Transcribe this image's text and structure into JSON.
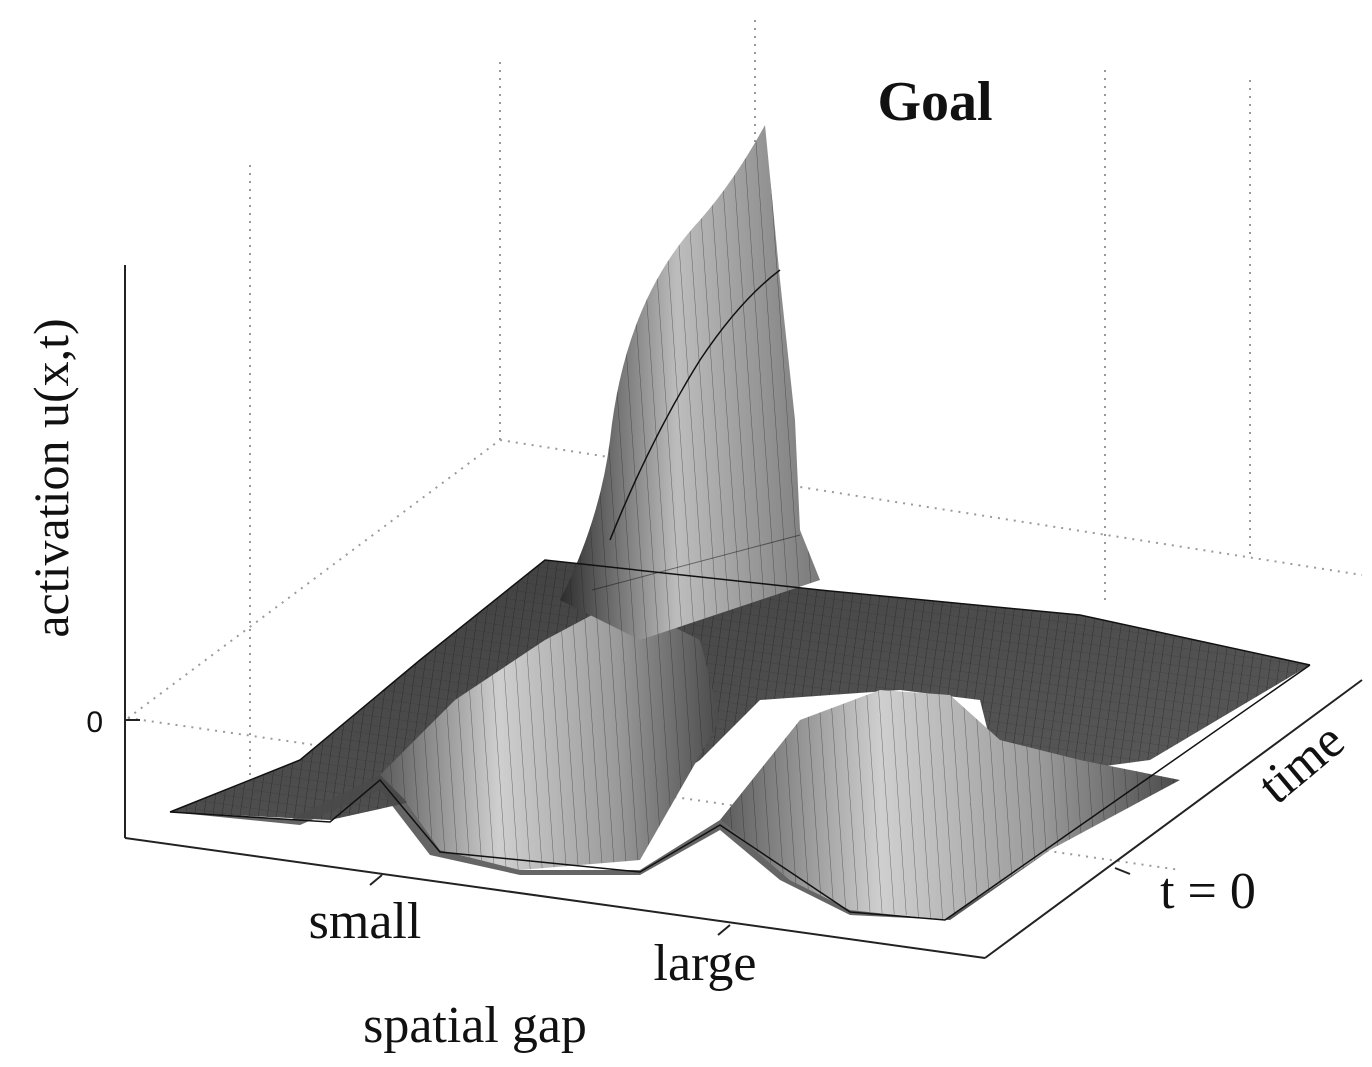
{
  "chart_data": {
    "type": "surface",
    "title": "Goal",
    "zlabel": "activation u(x,t)",
    "xlabel": "spatial gap",
    "ylabel": "time",
    "x_tick_labels": [
      "small",
      "large"
    ],
    "y_tick_labels": [
      "t = 0"
    ],
    "z_tick_labels": [
      "0"
    ],
    "z_ref": 0,
    "grid": "dotted",
    "colormap": "gray",
    "surface_description": {
      "baseline_activation": -0.6,
      "peaks_at_t0": [
        {
          "x": "small",
          "value": 0.1
        },
        {
          "x": "large",
          "value": 0.1
        }
      ],
      "peak_late_time": {
        "x": "between small and large",
        "value": 3.3
      }
    }
  },
  "colors": {
    "axis": "#222222",
    "grid": "#9a9a9a",
    "surface_light": "#d9d9d9",
    "surface_dark": "#3a3a3a",
    "mesh": "#1a1a1a"
  }
}
